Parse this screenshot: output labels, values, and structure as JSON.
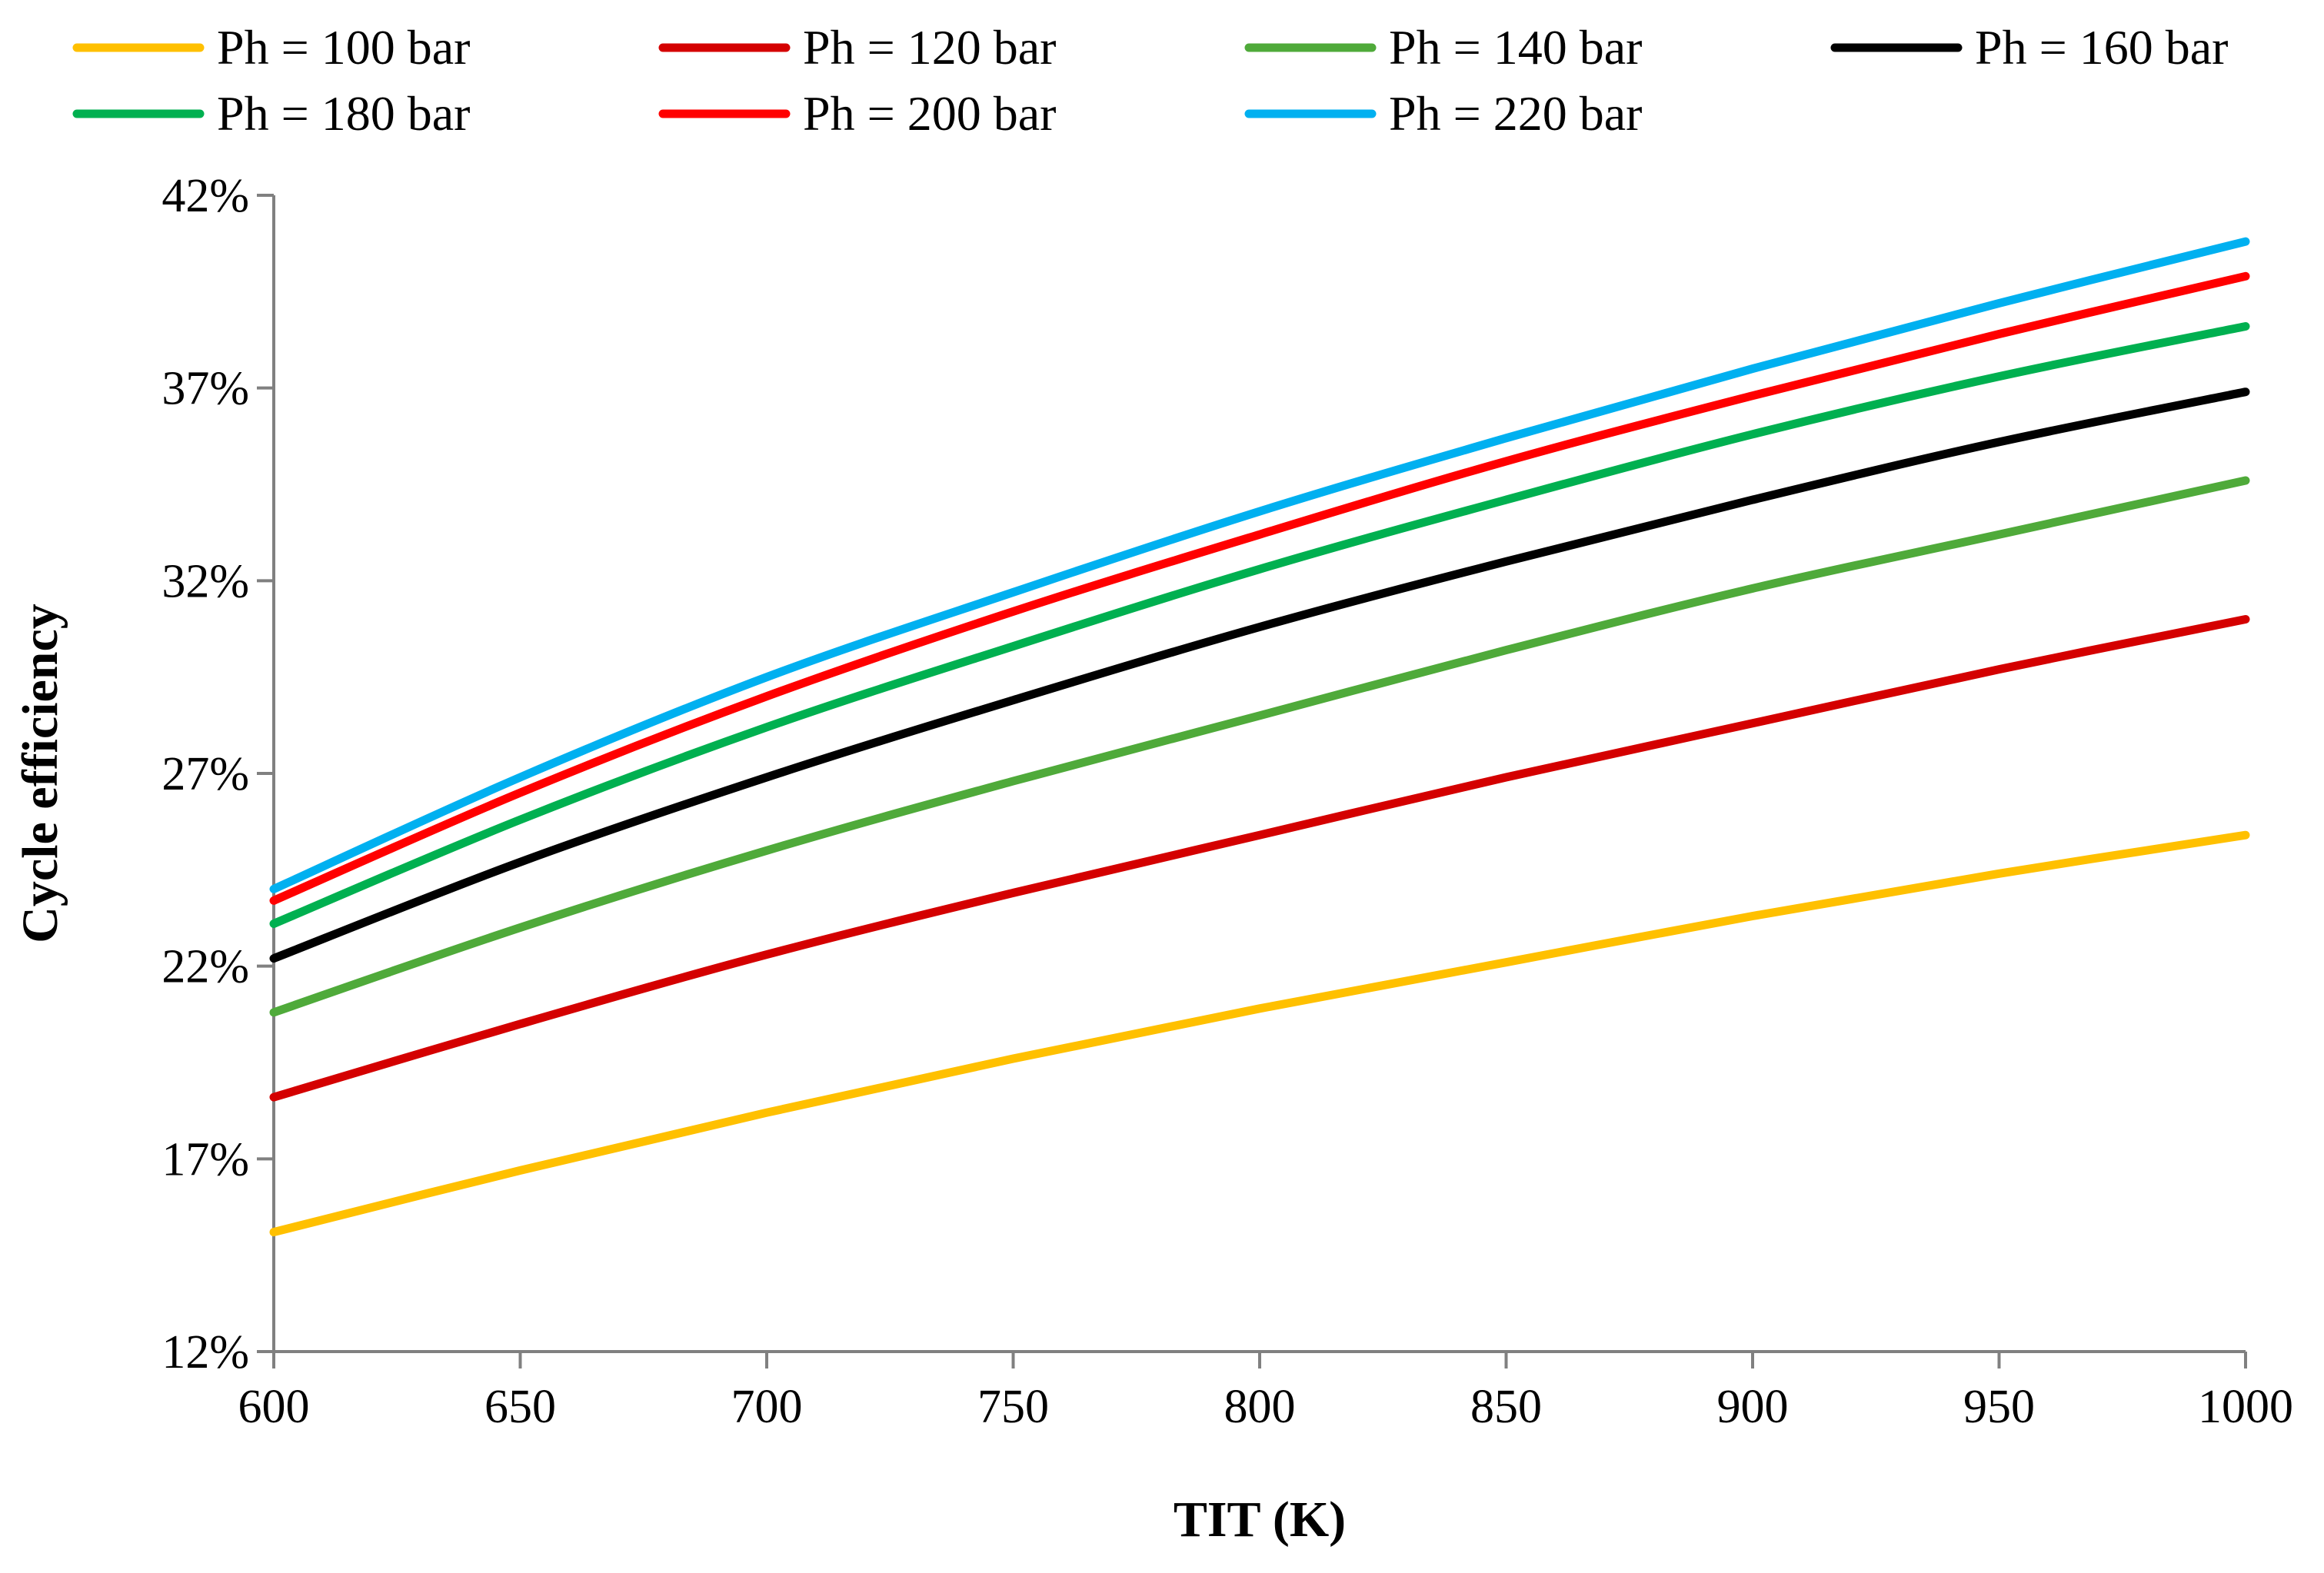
{
  "chart_data": {
    "type": "line",
    "title": "",
    "xlabel": "TIT (K)",
    "ylabel": "Cycle efficiency",
    "xlim": [
      600,
      1000
    ],
    "ylim": [
      12,
      42
    ],
    "x_ticks": [
      600,
      650,
      700,
      750,
      800,
      850,
      900,
      950,
      1000
    ],
    "x_tick_labels": [
      "600",
      "650",
      "700",
      "750",
      "800",
      "850",
      "900",
      "950",
      "1000"
    ],
    "y_ticks": [
      12,
      17,
      22,
      27,
      32,
      37,
      42
    ],
    "y_tick_labels": [
      "12%",
      "17%",
      "22%",
      "27%",
      "32%",
      "37%",
      "42%"
    ],
    "grid": false,
    "legend_position": "top",
    "x": [
      600,
      650,
      700,
      750,
      800,
      850,
      900,
      950,
      1000
    ],
    "series": [
      {
        "name": "Ph = 100 bar",
        "color": "#FFC000",
        "values": [
          15.1,
          16.7,
          18.2,
          19.6,
          20.9,
          22.1,
          23.3,
          24.4,
          25.4
        ]
      },
      {
        "name": "Ph = 120 bar",
        "color": "#D40000",
        "values": [
          18.6,
          20.5,
          22.3,
          23.9,
          25.4,
          26.9,
          28.3,
          29.7,
          31.0
        ]
      },
      {
        "name": "Ph = 140 bar",
        "color": "#4FAA3A",
        "values": [
          20.8,
          23.0,
          25.0,
          26.8,
          28.5,
          30.2,
          31.8,
          33.2,
          34.6
        ]
      },
      {
        "name": "Ph = 160 bar",
        "color": "#000000",
        "values": [
          22.2,
          24.7,
          26.9,
          28.9,
          30.8,
          32.5,
          34.1,
          35.6,
          36.9
        ]
      },
      {
        "name": "Ph = 180 bar",
        "color": "#00B050",
        "values": [
          23.1,
          25.8,
          28.2,
          30.3,
          32.3,
          34.1,
          35.8,
          37.3,
          38.6
        ]
      },
      {
        "name": "Ph = 200 bar",
        "color": "#FF0000",
        "values": [
          23.7,
          26.5,
          29.0,
          31.2,
          33.2,
          35.1,
          36.8,
          38.4,
          39.9
        ]
      },
      {
        "name": "Ph = 220 bar",
        "color": "#00B0F0",
        "values": [
          24.0,
          26.9,
          29.5,
          31.7,
          33.8,
          35.7,
          37.5,
          39.2,
          40.8
        ]
      }
    ]
  }
}
